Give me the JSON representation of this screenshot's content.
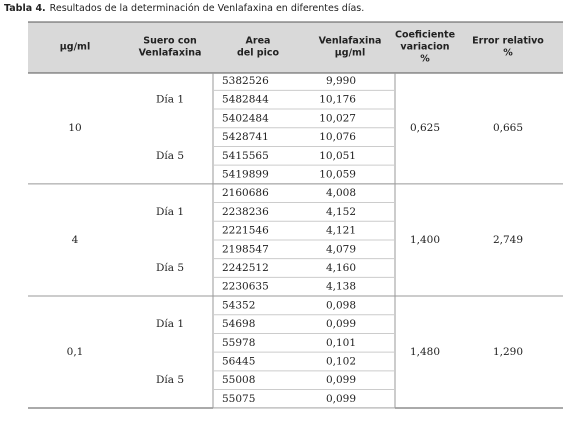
{
  "caption": {
    "label": "Tabla 4.",
    "text": "Resultados de la determinación de Venlafaxina en diferentes días."
  },
  "table": {
    "header": [
      [
        "µg/ml"
      ],
      [
        "Suero con",
        "Venlafaxina"
      ],
      [
        "Area",
        "del pico"
      ],
      [
        "Venlafaxina",
        "µg/ml"
      ],
      [
        "Coeficiente",
        "variacion",
        "%"
      ],
      [
        "Error relativo",
        "%"
      ]
    ],
    "groups": [
      {
        "concentration": "10",
        "coefficient": "0,625",
        "error": "0,665",
        "subgroups": [
          {
            "day": "Día 1",
            "rows": [
              [
                "5382526",
                "9,990"
              ],
              [
                "5482844",
                "10,176"
              ],
              [
                "5402484",
                "10,027"
              ]
            ]
          },
          {
            "day": "Día 5",
            "rows": [
              [
                "5428741",
                "10,076"
              ],
              [
                "5415565",
                "10,051"
              ],
              [
                "5419899",
                "10,059"
              ]
            ]
          }
        ]
      },
      {
        "concentration": "4",
        "coefficient": "1,400",
        "error": "2,749",
        "subgroups": [
          {
            "day": "Día 1",
            "rows": [
              [
                "2160686",
                "4,008"
              ],
              [
                "2238236",
                "4,152"
              ],
              [
                "2221546",
                "4,121"
              ]
            ]
          },
          {
            "day": "Día 5",
            "rows": [
              [
                "2198547",
                "4,079"
              ],
              [
                "2242512",
                "4,160"
              ],
              [
                "2230635",
                "4,138"
              ]
            ]
          }
        ]
      },
      {
        "concentration": "0,1",
        "coefficient": "1,480",
        "error": "1,290",
        "subgroups": [
          {
            "day": "Día 1",
            "rows": [
              [
                "54352",
                "0,098"
              ],
              [
                "54698",
                "0,099"
              ],
              [
                "55978",
                "0,101"
              ]
            ]
          },
          {
            "day": "Día 5",
            "rows": [
              [
                "56445",
                "0,102"
              ],
              [
                "55008",
                "0,099"
              ],
              [
                "55075",
                "0,099"
              ]
            ]
          }
        ]
      }
    ]
  }
}
